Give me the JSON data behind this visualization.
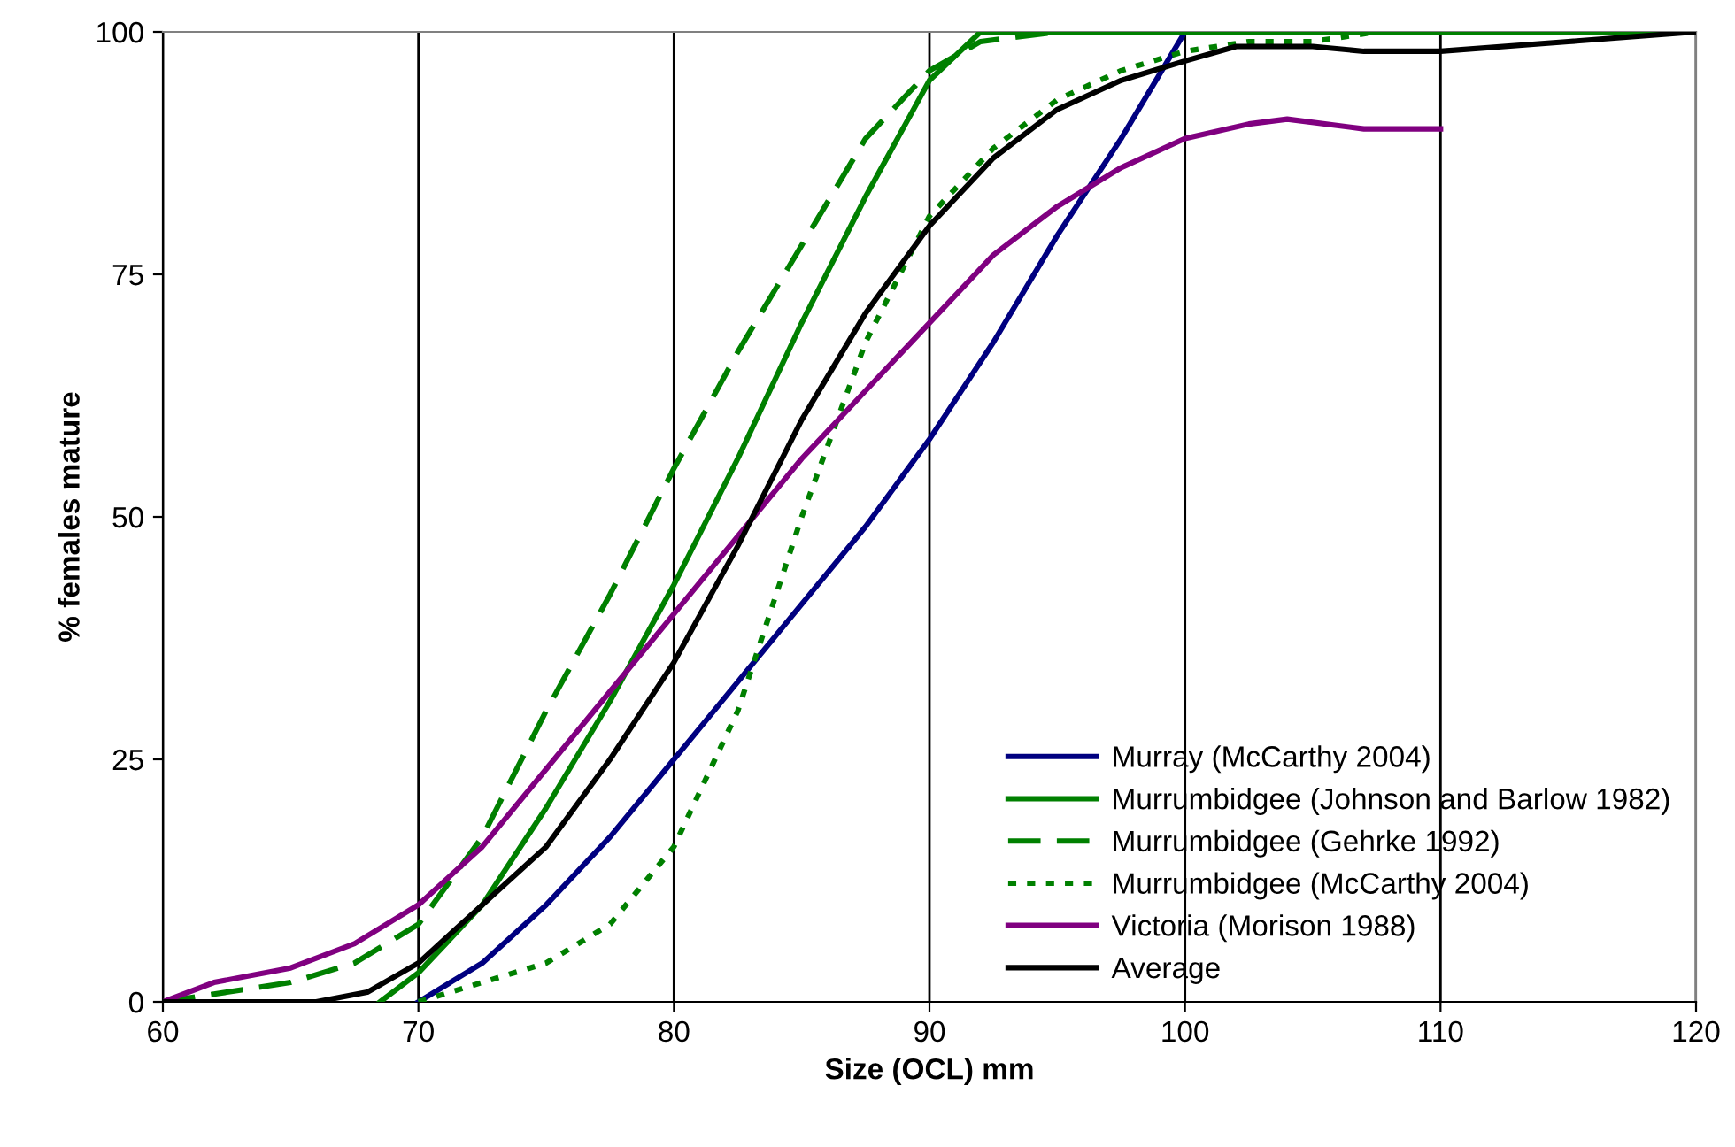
{
  "chart_data": {
    "type": "line",
    "xlabel": "Size (OCL) mm",
    "ylabel": "% females mature",
    "xlim": [
      60,
      120
    ],
    "xticks": [
      60,
      70,
      80,
      90,
      100,
      110,
      120
    ],
    "ylim": [
      0,
      100
    ],
    "yticks": [
      0,
      25,
      50,
      75,
      100
    ],
    "grid": "x",
    "legend": "bottom right",
    "marker": "none",
    "series": [
      {
        "name": "Murray (McCarthy 2004)",
        "color": "#000080",
        "line_style": "solid",
        "x": [
          70,
          72.5,
          75,
          77.5,
          80,
          82.5,
          85,
          87.5,
          90,
          92.5,
          95,
          97.5,
          100
        ],
        "values": [
          0,
          4,
          10,
          17,
          25,
          33,
          41,
          49,
          58,
          68,
          79,
          89,
          100
        ]
      },
      {
        "name": "Murrumbidgee (Johnson and Barlow 1982)",
        "color": "#008000",
        "line_style": "solid",
        "x": [
          68.5,
          70,
          72.5,
          75,
          77.5,
          80,
          82.5,
          85,
          87.5,
          90,
          92,
          120
        ],
        "values": [
          0,
          3,
          10,
          20,
          31,
          43,
          56,
          70,
          83,
          95,
          100,
          100
        ]
      },
      {
        "name": "Murrumbidgee (Gehrke 1992)",
        "color": "#008000",
        "line_style": "dashed",
        "x": [
          60,
          62.5,
          65,
          67.5,
          70,
          72.5,
          75,
          77.5,
          80,
          82.5,
          85,
          87.5,
          90,
          92,
          95,
          120
        ],
        "values": [
          0,
          1,
          2,
          4,
          8,
          17,
          30,
          42,
          55,
          67,
          78,
          89,
          96,
          99,
          100,
          100
        ]
      },
      {
        "name": "Murrumbidgee (McCarthy 2004)",
        "color": "#008000",
        "line_style": "dotted",
        "x": [
          70,
          72.5,
          75,
          77.5,
          80,
          82.5,
          85,
          87.5,
          90,
          92.5,
          95,
          97.5,
          100,
          102.5,
          105,
          107.5,
          110
        ],
        "values": [
          0,
          2,
          4,
          8,
          16,
          30,
          50,
          68,
          81,
          88,
          93,
          96,
          98,
          99,
          99,
          100,
          100
        ]
      },
      {
        "name": "Victoria (Morison 1988)",
        "color": "#800080",
        "line_style": "solid",
        "x": [
          60,
          62,
          65,
          67.5,
          70,
          72.5,
          75,
          77.5,
          80,
          82.5,
          85,
          87.5,
          90,
          92.5,
          95,
          97.5,
          100,
          102.5,
          104,
          107,
          110
        ],
        "values": [
          0,
          2,
          3.5,
          6,
          10,
          16,
          24,
          32,
          40,
          48,
          56,
          63,
          70,
          77,
          82,
          86,
          89,
          90.5,
          91,
          90,
          90
        ]
      },
      {
        "name": "Average",
        "color": "#000000",
        "line_style": "solid",
        "x": [
          60,
          66,
          68,
          70,
          72.5,
          75,
          77.5,
          80,
          82.5,
          85,
          87.5,
          90,
          92.5,
          95,
          97.5,
          100,
          102,
          105,
          107,
          110,
          115,
          120
        ],
        "values": [
          0,
          0,
          1,
          4,
          10,
          16,
          25,
          35,
          47,
          60,
          71,
          80,
          87,
          92,
          95,
          97,
          98.5,
          98.5,
          98,
          98,
          99,
          100
        ]
      }
    ]
  }
}
